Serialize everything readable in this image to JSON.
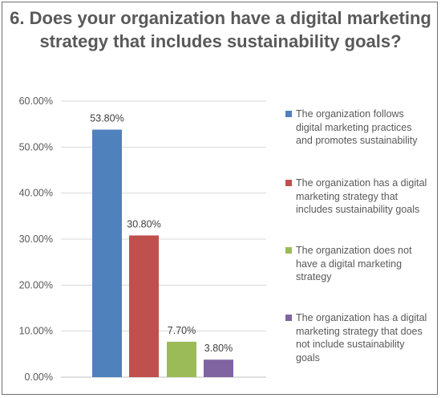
{
  "chart_data": {
    "type": "bar",
    "title": "6. Does your organization have a digital marketing strategy that includes sustainability goals?",
    "ylim": [
      0,
      60
    ],
    "yticks": [
      "0.00%",
      "10.00%",
      "20.00%",
      "30.00%",
      "40.00%",
      "50.00%",
      "60.00%"
    ],
    "grid": true,
    "legend_position": "right",
    "series": [
      {
        "name": "The organization follows digital marketing practices and promotes sustainability",
        "value": 53.8,
        "label": "53.80%",
        "color": "#4f81bd"
      },
      {
        "name": "The organization has a digital marketing strategy that includes sustainability goals",
        "value": 30.8,
        "label": "30.80%",
        "color": "#c0504d"
      },
      {
        "name": "The organization does not have a digital marketing strategy",
        "value": 7.7,
        "label": "7.70%",
        "color": "#9bbb59"
      },
      {
        "name": "The organization has a digital marketing strategy that does not include sustainability goals",
        "value": 3.8,
        "label": "3.80%",
        "color": "#8064a2"
      }
    ]
  }
}
